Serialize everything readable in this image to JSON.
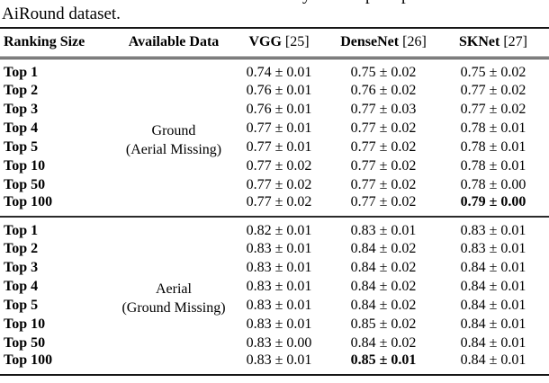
{
  "page": {
    "cropped_line_fragments": [
      "y",
      "p",
      "p"
    ],
    "caption": "AiRound dataset."
  },
  "table": {
    "headers": [
      {
        "name": "Ranking Size",
        "ref": ""
      },
      {
        "name": "Available Data",
        "ref": ""
      },
      {
        "name": "VGG",
        "ref": "[25]"
      },
      {
        "name": "DenseNet",
        "ref": "[26]"
      },
      {
        "name": "SKNet",
        "ref": "[27]"
      }
    ],
    "blocks": [
      {
        "available_data_line1": "Ground",
        "available_data_line2": "(Aerial Missing)",
        "rows": [
          {
            "rank": "Top 1",
            "values": [
              "0.74 ± 0.01",
              "0.75 ± 0.02",
              "0.75 ± 0.02"
            ],
            "bold_index": -1
          },
          {
            "rank": "Top 2",
            "values": [
              "0.76 ± 0.01",
              "0.76 ± 0.02",
              "0.77 ± 0.02"
            ],
            "bold_index": -1
          },
          {
            "rank": "Top 3",
            "values": [
              "0.76 ± 0.01",
              "0.77 ± 0.03",
              "0.77 ± 0.02"
            ],
            "bold_index": -1
          },
          {
            "rank": "Top 4",
            "values": [
              "0.77 ± 0.01",
              "0.77 ± 0.02",
              "0.78 ± 0.01"
            ],
            "bold_index": -1
          },
          {
            "rank": "Top 5",
            "values": [
              "0.77 ± 0.01",
              "0.77 ± 0.02",
              "0.78 ± 0.01"
            ],
            "bold_index": -1
          },
          {
            "rank": "Top 10",
            "values": [
              "0.77 ± 0.02",
              "0.77 ± 0.02",
              "0.78 ± 0.01"
            ],
            "bold_index": -1
          },
          {
            "rank": "Top 50",
            "values": [
              "0.77 ± 0.02",
              "0.77 ± 0.02",
              "0.78 ± 0.00"
            ],
            "bold_index": -1
          },
          {
            "rank": "Top 100",
            "values": [
              "0.77 ± 0.02",
              "0.77 ± 0.02",
              "0.79 ± 0.00"
            ],
            "bold_index": 2
          }
        ]
      },
      {
        "available_data_line1": "Aerial",
        "available_data_line2": "(Ground Missing)",
        "rows": [
          {
            "rank": "Top 1",
            "values": [
              "0.82 ± 0.01",
              "0.83 ± 0.01",
              "0.83 ± 0.01"
            ],
            "bold_index": -1
          },
          {
            "rank": "Top 2",
            "values": [
              "0.83 ± 0.01",
              "0.84 ± 0.02",
              "0.83 ± 0.01"
            ],
            "bold_index": -1
          },
          {
            "rank": "Top 3",
            "values": [
              "0.83 ± 0.01",
              "0.84 ± 0.02",
              "0.84 ± 0.01"
            ],
            "bold_index": -1
          },
          {
            "rank": "Top 4",
            "values": [
              "0.83 ± 0.01",
              "0.84 ± 0.02",
              "0.84 ± 0.01"
            ],
            "bold_index": -1
          },
          {
            "rank": "Top 5",
            "values": [
              "0.83 ± 0.01",
              "0.84 ± 0.02",
              "0.84 ± 0.01"
            ],
            "bold_index": -1
          },
          {
            "rank": "Top 10",
            "values": [
              "0.83 ± 0.01",
              "0.85 ± 0.02",
              "0.84 ± 0.01"
            ],
            "bold_index": -1
          },
          {
            "rank": "Top 50",
            "values": [
              "0.83 ± 0.00",
              "0.84 ± 0.02",
              "0.84 ± 0.01"
            ],
            "bold_index": -1
          },
          {
            "rank": "Top 100",
            "values": [
              "0.83 ± 0.01",
              "0.85 ± 0.01",
              "0.84 ± 0.01"
            ],
            "bold_index": 1
          }
        ]
      }
    ]
  }
}
